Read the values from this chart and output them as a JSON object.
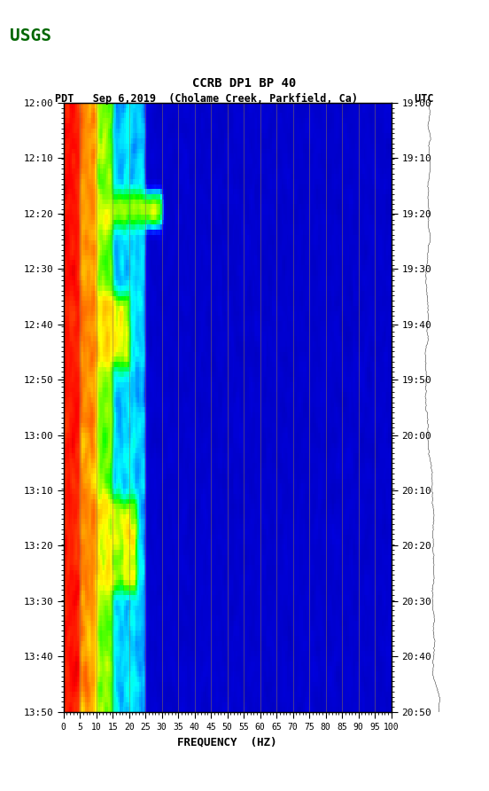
{
  "title_line1": "CCRB DP1 BP 40",
  "title_line2": "PDT   Sep 6,2019  (Cholame Creek, Parkfield, Ca)         UTC",
  "freq_min": 0,
  "freq_max": 100,
  "freq_ticks": [
    0,
    5,
    10,
    15,
    20,
    25,
    30,
    35,
    40,
    45,
    50,
    55,
    60,
    65,
    70,
    75,
    80,
    85,
    90,
    95,
    100
  ],
  "xlabel": "FREQUENCY  (HZ)",
  "time_labels_left": [
    "12:00",
    "12:10",
    "12:20",
    "12:30",
    "12:40",
    "12:50",
    "13:00",
    "13:10",
    "13:20",
    "13:30",
    "13:40",
    "13:50"
  ],
  "time_labels_right": [
    "19:00",
    "19:10",
    "19:20",
    "19:30",
    "19:40",
    "19:50",
    "20:00",
    "20:10",
    "20:20",
    "20:30",
    "20:40",
    "20:50"
  ],
  "n_time_steps": 120,
  "n_freq_steps": 200,
  "vline_freqs": [
    5,
    10,
    15,
    20,
    25,
    30,
    35,
    40,
    45,
    50,
    55,
    60,
    65,
    70,
    75,
    80,
    85,
    90,
    95,
    100
  ],
  "background_color": "#ffffff",
  "spectrogram_bg": "#0000cc",
  "fig_width": 5.52,
  "fig_height": 8.92
}
